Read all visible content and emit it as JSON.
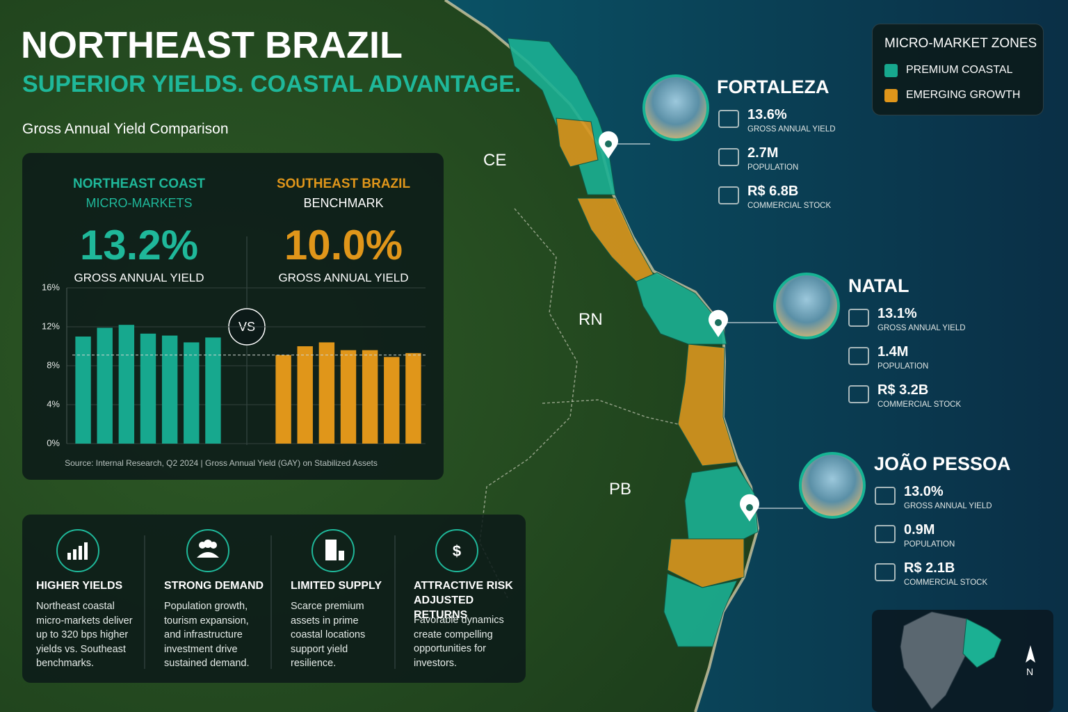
{
  "header": {
    "title": "NORTHEAST BRAZIL",
    "subtitle": "SUPERIOR YIELDS. COASTAL ADVANTAGE.",
    "section": "Gross Annual Yield Comparison"
  },
  "comparison": [
    {
      "line2": "MICRO-MARKETS",
      "yield": "13.2%",
      "label": "GROSS ANNUAL YIELD"
    },
    {
      "line2": "BENCHMARK",
      "yield": "10.0%",
      "label": "GROSS ANNUAL YIELD"
    }
  ],
  "vs": "VS",
  "chart_data": {
    "type": "bar",
    "ylim": [
      0,
      16
    ],
    "yticks": [
      {
        "value": 0,
        "label": "0%"
      },
      {
        "value": 4,
        "label": "4%"
      },
      {
        "value": 8,
        "label": "8%"
      },
      {
        "value": 12,
        "label": "12%"
      },
      {
        "value": 16,
        "label": "16%"
      }
    ],
    "grid": true,
    "benchmark_line": 9.1,
    "series": [
      {
        "name": "NORTHEAST COAST",
        "color": "#17a88e",
        "values": [
          11.0,
          11.9,
          12.2,
          11.3,
          11.1,
          10.4,
          10.9
        ]
      },
      {
        "name": "SOUTHEAST BRAZIL",
        "color": "#e0961a",
        "values": [
          9.1,
          10.0,
          10.4,
          9.6,
          9.6,
          8.9,
          9.3
        ]
      }
    ],
    "source": "Source: Internal Research, Q2 2024  |  Gross Annual Yield (GAY) on Stabilized Assets"
  },
  "features": [
    {
      "title": "HIGHER YIELDS",
      "text": "Northeast coastal micro-markets deliver up to 320 bps higher yields vs. Southeast benchmarks."
    },
    {
      "title": "STRONG DEMAND",
      "text": "Population growth, tourism expansion, and infrastructure investment drive sustained demand."
    },
    {
      "title": "LIMITED SUPPLY",
      "text": "Scarce premium assets in prime coastal locations support yield resilience."
    },
    {
      "title": "ATTRACTIVE RISK ADJUSTED RETURNS",
      "text": "Favorable dynamics create compelling opportunities for investors."
    }
  ],
  "legend": {
    "title": "MICRO-MARKET ZONES",
    "items": [
      "PREMIUM COASTAL",
      "EMERGING GROWTH"
    ]
  },
  "states": [
    "CE",
    "RN",
    "PB"
  ],
  "cities": [
    {
      "name": "FORTALEZA",
      "yield": "13.6%",
      "yield_label": "GROSS ANNUAL YIELD",
      "population": "2.7M",
      "population_label": "POPULATION",
      "stock": "R$ 6.8B",
      "stock_label": "COMMERCIAL STOCK"
    },
    {
      "name": "NATAL",
      "yield": "13.1%",
      "yield_label": "GROSS ANNUAL YIELD",
      "population": "1.4M",
      "population_label": "POPULATION",
      "stock": "R$ 3.2B",
      "stock_label": "COMMERCIAL STOCK"
    },
    {
      "name": "JOÃO PESSOA",
      "yield": "13.0%",
      "yield_label": "GROSS ANNUAL YIELD",
      "population": "0.9M",
      "population_label": "POPULATION",
      "stock": "R$ 2.1B",
      "stock_label": "COMMERCIAL STOCK"
    }
  ],
  "compass": "N"
}
